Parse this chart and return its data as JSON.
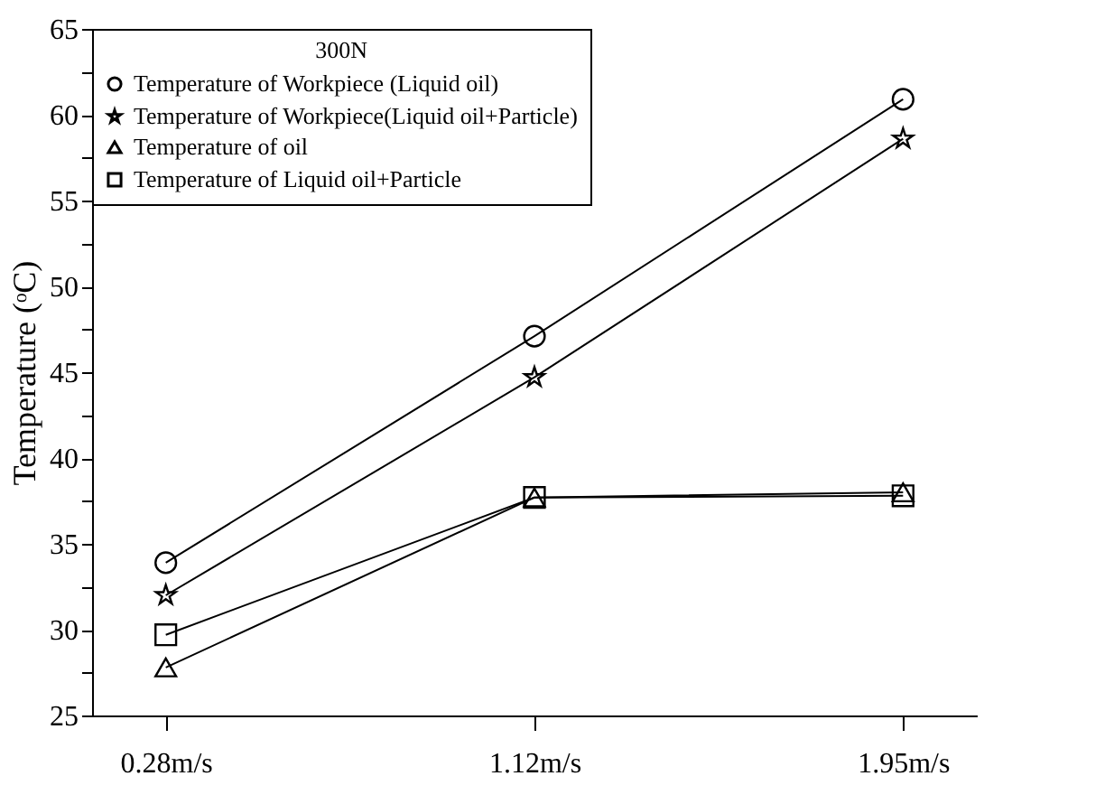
{
  "chart_data": {
    "type": "line",
    "legend_title": "300N",
    "ylabel": "Temperature (ᵒC)",
    "categories": [
      "0.28m/s",
      "1.12m/s",
      "1.95m/s"
    ],
    "series": [
      {
        "name": "Temperature of Workpiece (Liquid oil)",
        "color": "#000000",
        "marker": "circle",
        "values": [
          33.9,
          47.1,
          60.9
        ]
      },
      {
        "name": "Temperature of Workpiece(Liquid oil+Particle)",
        "color": "#000000",
        "marker": "star",
        "values": [
          32.0,
          44.7,
          58.6
        ]
      },
      {
        "name": "Temperature of oil",
        "color": "#000000",
        "marker": "triangle",
        "values": [
          27.8,
          37.7,
          38.0
        ]
      },
      {
        "name": "Temperature of Liquid oil+Particle",
        "color": "#000000",
        "marker": "square",
        "values": [
          29.7,
          37.7,
          37.8
        ]
      }
    ],
    "ylim": [
      25,
      65
    ],
    "yticks": [
      25,
      {
        "value": 27.5,
        "label": null
      },
      30,
      {
        "value": 32.5,
        "label": null
      },
      35,
      {
        "value": 37.5,
        "label": null
      },
      40,
      {
        "value": 42.5,
        "label": null
      },
      45,
      {
        "value": 47.5,
        "label": null
      },
      50,
      {
        "value": 52.5,
        "label": null
      },
      55,
      {
        "value": 57.5,
        "label": null
      },
      60,
      {
        "value": 62.5,
        "label": null
      },
      65
    ],
    "grid": false,
    "legend": "top left",
    "line_style": "solid"
  }
}
